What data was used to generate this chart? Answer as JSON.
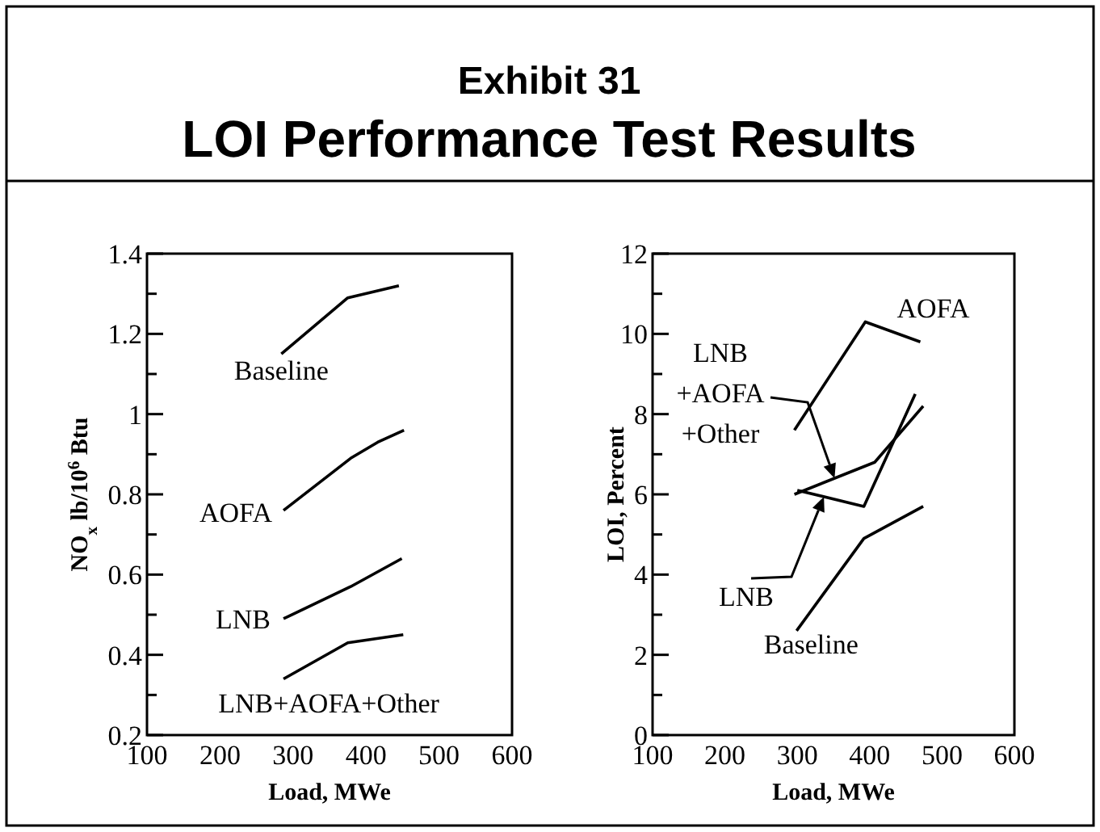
{
  "chart_data": [
    {
      "type": "line",
      "title": "Exhibit 31",
      "subtitle": "LOI Performance Test Results",
      "xlabel": "Load, MWe",
      "ylabel": "NO$_{x}$ lb/10$^{6}$ Btu",
      "xlim": [
        100,
        600
      ],
      "xticks": [
        100,
        200,
        300,
        400,
        500,
        600
      ],
      "ylim": [
        0.2,
        1.4
      ],
      "yticks": [
        0.2,
        {
          "value": 0.3,
          "label": null
        },
        0.4,
        {
          "value": 0.5,
          "label": null
        },
        0.6,
        {
          "value": 0.7,
          "label": null
        },
        0.8,
        {
          "value": 0.9,
          "label": null
        },
        1,
        {
          "value": 1.1,
          "label": null
        },
        1.2,
        {
          "value": 1.3,
          "label": null
        },
        1.4
      ],
      "grid": false,
      "series": [
        {
          "name": "Baseline",
          "color": "#000000",
          "x": [
            284,
            375,
            445
          ],
          "values": [
            1.15,
            1.29,
            1.32
          ]
        },
        {
          "name": "AOFA",
          "color": "#000000",
          "x": [
            287,
            379,
            416,
            452
          ],
          "values": [
            0.76,
            0.89,
            0.93,
            0.96
          ]
        },
        {
          "name": "LNB",
          "color": "#000000",
          "x": [
            287,
            379,
            449
          ],
          "values": [
            0.49,
            0.57,
            0.64
          ]
        },
        {
          "name": "LNB+AOFA+Other",
          "color": "#000000",
          "x": [
            287,
            375,
            451
          ],
          "values": [
            0.34,
            0.43,
            0.45
          ]
        }
      ]
    },
    {
      "type": "line",
      "xlabel": "Load, MWe",
      "ylabel": "LOI, Percent",
      "xlim": [
        100,
        600
      ],
      "xticks": [
        100,
        200,
        300,
        400,
        500,
        600
      ],
      "ylim": [
        0,
        12
      ],
      "yticks": [
        0,
        {
          "value": 1,
          "label": null
        },
        2,
        {
          "value": 3,
          "label": null
        },
        4,
        {
          "value": 5,
          "label": null
        },
        6,
        {
          "value": 7,
          "label": null
        },
        8,
        {
          "value": 9,
          "label": null
        },
        10,
        {
          "value": 11,
          "label": null
        },
        12
      ],
      "grid": false,
      "series": [
        {
          "name": "AOFA",
          "color": "#000000",
          "x": [
            296,
            394,
            470
          ],
          "values": [
            7.6,
            10.3,
            9.8
          ]
        },
        {
          "name": "LNB +AOFA +Other",
          "color": "#000000",
          "x": [
            296,
            407,
            474
          ],
          "values": [
            6.0,
            6.8,
            8.2
          ]
        },
        {
          "name": "LNB",
          "color": "#000000",
          "x": [
            300,
            392,
            463
          ],
          "values": [
            6.1,
            5.7,
            8.5
          ]
        },
        {
          "name": "Baseline",
          "color": "#000000",
          "x": [
            299,
            392,
            474
          ],
          "values": [
            2.6,
            4.9,
            5.7
          ]
        }
      ]
    }
  ]
}
